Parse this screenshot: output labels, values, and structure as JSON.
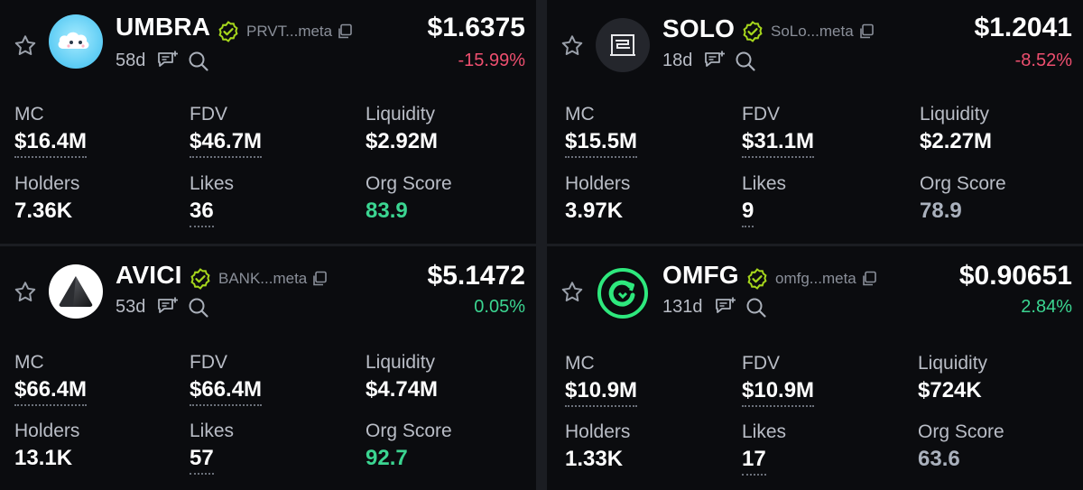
{
  "colors": {
    "background": "#0b0c0f",
    "negative": "#ee4f6f",
    "positive": "#3bd591",
    "verified": "#a6d61c"
  },
  "tokens": [
    {
      "symbol": "UMBRA",
      "address": "PRVT...meta",
      "age": "58d",
      "price": "$1.6375",
      "change": "-15.99%",
      "change_dir": "negative",
      "logo": "cloud-mascot-icon",
      "mc_label": "MC",
      "mc": "$16.4M",
      "fdv_label": "FDV",
      "fdv": "$46.7M",
      "liquidity_label": "Liquidity",
      "liquidity": "$2.92M",
      "holders_label": "Holders",
      "holders": "7.36K",
      "likes_label": "Likes",
      "likes": "36",
      "org_label": "Org Score",
      "org_score": "83.9",
      "org_level": "good"
    },
    {
      "symbol": "SOLO",
      "address": "SoLo...meta",
      "age": "18d",
      "price": "$1.2041",
      "change": "-8.52%",
      "change_dir": "negative",
      "logo": "solo-frame-icon",
      "mc_label": "MC",
      "mc": "$15.5M",
      "fdv_label": "FDV",
      "fdv": "$31.1M",
      "liquidity_label": "Liquidity",
      "liquidity": "$2.27M",
      "holders_label": "Holders",
      "holders": "3.97K",
      "likes_label": "Likes",
      "likes": "9",
      "org_label": "Org Score",
      "org_score": "78.9",
      "org_level": "mid"
    },
    {
      "symbol": "AVICI",
      "address": "BANK...meta",
      "age": "53d",
      "price": "$5.1472",
      "change": "0.05%",
      "change_dir": "positive",
      "logo": "triangle-prism-icon",
      "mc_label": "MC",
      "mc": "$66.4M",
      "fdv_label": "FDV",
      "fdv": "$66.4M",
      "liquidity_label": "Liquidity",
      "liquidity": "$4.74M",
      "holders_label": "Holders",
      "holders": "13.1K",
      "likes_label": "Likes",
      "likes": "57",
      "org_label": "Org Score",
      "org_score": "92.7",
      "org_level": "good"
    },
    {
      "symbol": "OMFG",
      "address": "omfg...meta",
      "age": "131d",
      "price": "$0.90651",
      "change": "2.84%",
      "change_dir": "positive",
      "logo": "green-ring-icon",
      "mc_label": "MC",
      "mc": "$10.9M",
      "fdv_label": "FDV",
      "fdv": "$10.9M",
      "liquidity_label": "Liquidity",
      "liquidity": "$724K",
      "holders_label": "Holders",
      "holders": "1.33K",
      "likes_label": "Likes",
      "likes": "17",
      "org_label": "Org Score",
      "org_score": "63.6",
      "org_level": "mid"
    }
  ]
}
